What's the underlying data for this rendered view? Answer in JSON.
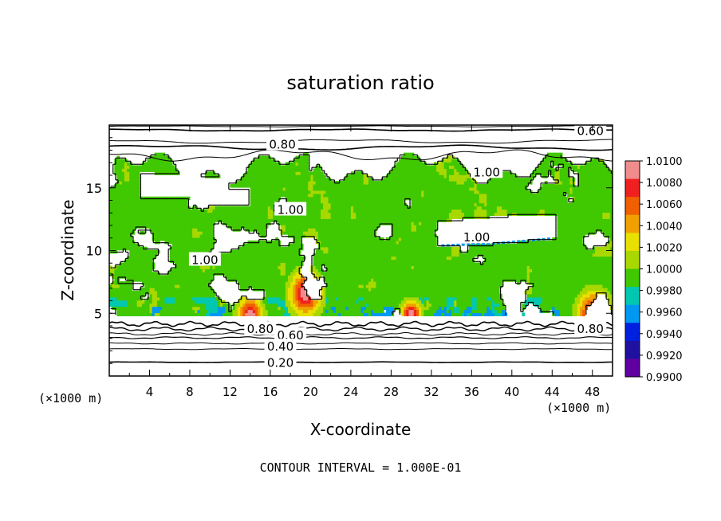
{
  "chart_data": {
    "type": "heatmap",
    "title": "saturation ratio",
    "xlabel": "X-coordinate",
    "ylabel": "Z-coordinate",
    "x_unit": "(×1000 m)",
    "z_unit": "(×1000 m)",
    "x_ticks": [
      "4",
      "8",
      "12",
      "16",
      "20",
      "24",
      "28",
      "32",
      "36",
      "40",
      "44",
      "48"
    ],
    "z_ticks": [
      "5",
      "10",
      "15"
    ],
    "xlim": [
      0,
      50
    ],
    "zlim": [
      0,
      20
    ],
    "footer": "CONTOUR INTERVAL = 1.000E-01",
    "colorbar": {
      "labels": [
        "1.0100",
        "1.0080",
        "1.0060",
        "1.0040",
        "1.0020",
        "1.0000",
        "0.9980",
        "0.9960",
        "0.9940",
        "0.9920",
        "0.9900"
      ],
      "colors": [
        "#f08c8c",
        "#f02020",
        "#f06000",
        "#f0a000",
        "#e8e000",
        "#a8d800",
        "#40c800",
        "#00c8b0",
        "#0098f0",
        "#0020e0",
        "#2010a0",
        "#6000a0"
      ]
    },
    "contour_labels": [
      {
        "text": "0.60",
        "x": 47.8,
        "z": 19.6
      },
      {
        "text": "0.80",
        "x": 17.2,
        "z": 18.5
      },
      {
        "text": "1.00",
        "x": 18.0,
        "z": 13.3
      },
      {
        "text": "1.00",
        "x": 37.5,
        "z": 16.3
      },
      {
        "text": "1.00",
        "x": 36.5,
        "z": 11.1
      },
      {
        "text": "1.00",
        "x": 9.5,
        "z": 9.3
      },
      {
        "text": "0.80",
        "x": 15.0,
        "z": 3.8
      },
      {
        "text": "0.60",
        "x": 18.0,
        "z": 3.3
      },
      {
        "text": "0.40",
        "x": 17.0,
        "z": 2.4
      },
      {
        "text": "0.20",
        "x": 17.0,
        "z": 1.1
      },
      {
        "text": "0.80",
        "x": 47.8,
        "z": 3.8
      }
    ]
  }
}
